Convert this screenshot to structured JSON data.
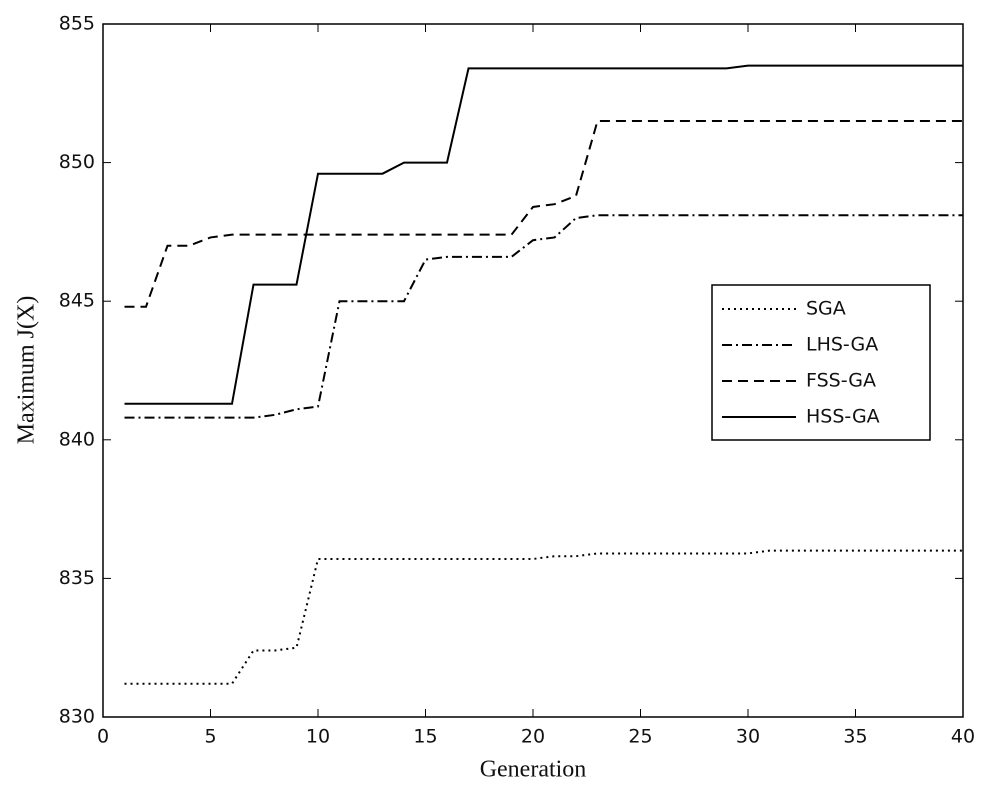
{
  "chart_data": {
    "type": "line",
    "xlabel": "Generation",
    "ylabel": "Maximum J(X)",
    "x": [
      1,
      2,
      3,
      4,
      5,
      6,
      7,
      8,
      9,
      10,
      11,
      12,
      13,
      14,
      15,
      16,
      17,
      18,
      19,
      20,
      21,
      22,
      23,
      24,
      25,
      26,
      27,
      28,
      29,
      30,
      31,
      32,
      33,
      34,
      35,
      36,
      37,
      38,
      39,
      40
    ],
    "series": [
      {
        "name": "SGA",
        "color": "#000000",
        "linestyle": ":",
        "values": [
          831.2,
          831.2,
          831.2,
          831.2,
          831.2,
          831.2,
          832.4,
          832.4,
          832.5,
          835.7,
          835.7,
          835.7,
          835.7,
          835.7,
          835.7,
          835.7,
          835.7,
          835.7,
          835.7,
          835.7,
          835.8,
          835.8,
          835.9,
          835.9,
          835.9,
          835.9,
          835.9,
          835.9,
          835.9,
          835.9,
          836.0,
          836.0,
          836.0,
          836.0,
          836.0,
          836.0,
          836.0,
          836.0,
          836.0,
          836.0
        ]
      },
      {
        "name": "LHS-GA",
        "color": "#000000",
        "linestyle": "-.",
        "values": [
          840.8,
          840.8,
          840.8,
          840.8,
          840.8,
          840.8,
          840.8,
          840.9,
          841.1,
          841.2,
          845.0,
          845.0,
          845.0,
          845.0,
          846.5,
          846.6,
          846.6,
          846.6,
          846.6,
          847.2,
          847.3,
          848.0,
          848.1,
          848.1,
          848.1,
          848.1,
          848.1,
          848.1,
          848.1,
          848.1,
          848.1,
          848.1,
          848.1,
          848.1,
          848.1,
          848.1,
          848.1,
          848.1,
          848.1,
          848.1
        ]
      },
      {
        "name": "FSS-GA",
        "color": "#000000",
        "linestyle": "--",
        "values": [
          844.8,
          844.8,
          847.0,
          847.0,
          847.3,
          847.4,
          847.4,
          847.4,
          847.4,
          847.4,
          847.4,
          847.4,
          847.4,
          847.4,
          847.4,
          847.4,
          847.4,
          847.4,
          847.4,
          848.4,
          848.5,
          848.8,
          851.5,
          851.5,
          851.5,
          851.5,
          851.5,
          851.5,
          851.5,
          851.5,
          851.5,
          851.5,
          851.5,
          851.5,
          851.5,
          851.5,
          851.5,
          851.5,
          851.5,
          851.5
        ]
      },
      {
        "name": "HSS-GA",
        "color": "#000000",
        "linestyle": "-",
        "values": [
          841.3,
          841.3,
          841.3,
          841.3,
          841.3,
          841.3,
          845.6,
          845.6,
          845.6,
          849.6,
          849.6,
          849.6,
          849.6,
          850.0,
          850.0,
          850.0,
          853.4,
          853.4,
          853.4,
          853.4,
          853.4,
          853.4,
          853.4,
          853.4,
          853.4,
          853.4,
          853.4,
          853.4,
          853.4,
          853.5,
          853.5,
          853.5,
          853.5,
          853.5,
          853.5,
          853.5,
          853.5,
          853.5,
          853.5,
          853.5
        ]
      }
    ],
    "xlim": [
      0,
      40
    ],
    "xticks": [
      0,
      5,
      10,
      15,
      20,
      25,
      30,
      35,
      40
    ],
    "ylim": [
      830,
      855
    ],
    "yticks": [
      830,
      835,
      840,
      845,
      850,
      855
    ],
    "grid": false,
    "legend": "right"
  }
}
